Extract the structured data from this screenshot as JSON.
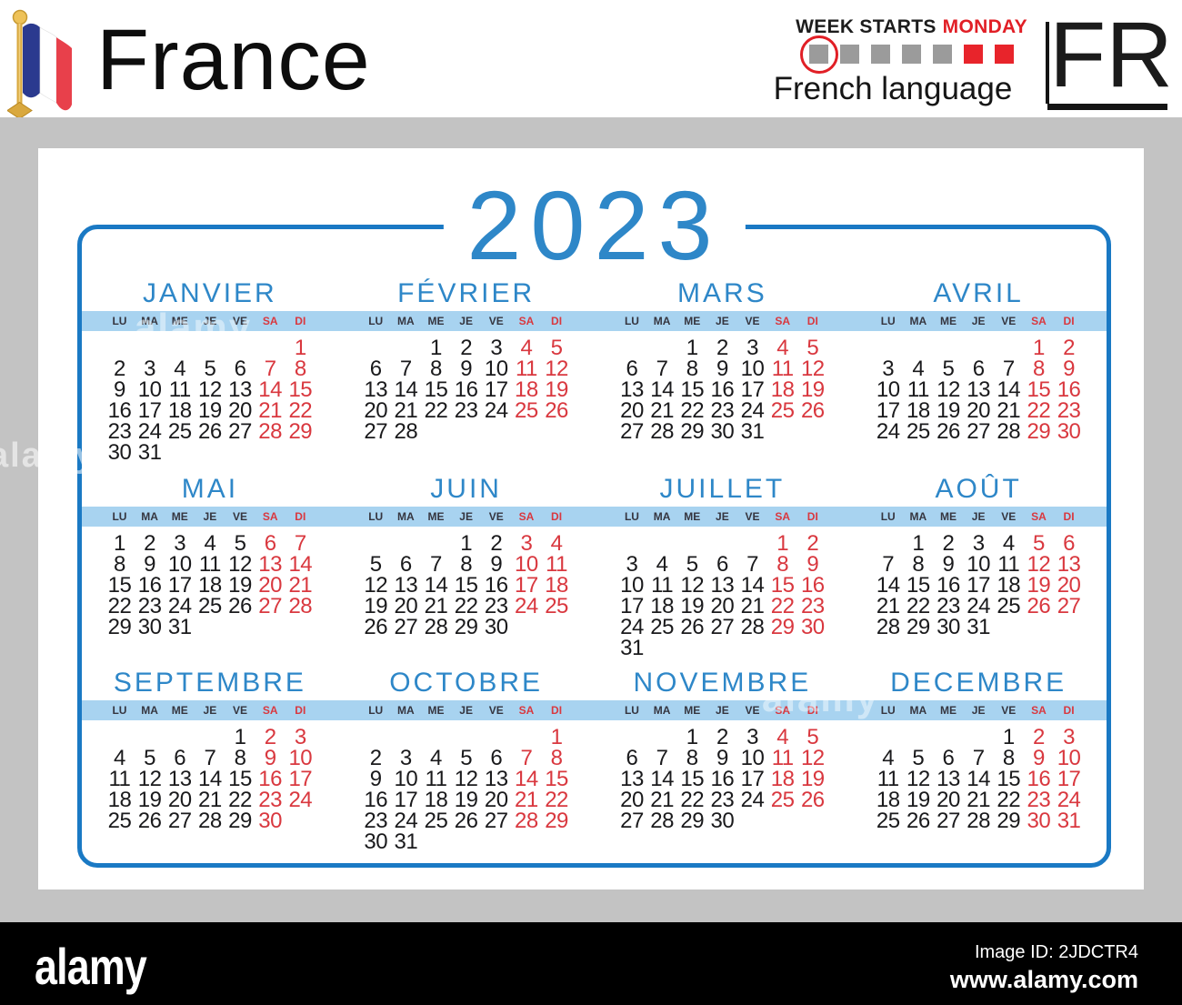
{
  "header": {
    "country": "France",
    "week_starts_prefix": "WEEK STARTS",
    "week_starts_day": "MONDAY",
    "language_label": "French language",
    "country_code": "FR",
    "square_colors": [
      "gray",
      "gray",
      "gray",
      "gray",
      "gray",
      "red",
      "red"
    ],
    "circled_index": 0
  },
  "calendar": {
    "year": "2023",
    "day_headers": [
      "LU",
      "MA",
      "ME",
      "JE",
      "VE",
      "SA",
      "DI"
    ],
    "weekend_columns": [
      5,
      6
    ],
    "months": [
      {
        "name": "JANVIER",
        "weeks": [
          [
            "",
            "",
            "",
            "",
            "",
            "",
            "1"
          ],
          [
            "2",
            "3",
            "4",
            "5",
            "6",
            "7",
            "8"
          ],
          [
            "9",
            "10",
            "11",
            "12",
            "13",
            "14",
            "15"
          ],
          [
            "16",
            "17",
            "18",
            "19",
            "20",
            "21",
            "22"
          ],
          [
            "23",
            "24",
            "25",
            "26",
            "27",
            "28",
            "29"
          ],
          [
            "30",
            "31",
            "",
            "",
            "",
            "",
            ""
          ]
        ]
      },
      {
        "name": "FÉVRIER",
        "weeks": [
          [
            "",
            "",
            "1",
            "2",
            "3",
            "4",
            "5"
          ],
          [
            "6",
            "7",
            "8",
            "9",
            "10",
            "11",
            "12"
          ],
          [
            "13",
            "14",
            "15",
            "16",
            "17",
            "18",
            "19"
          ],
          [
            "20",
            "21",
            "22",
            "23",
            "24",
            "25",
            "26"
          ],
          [
            "27",
            "28",
            "",
            "",
            "",
            "",
            ""
          ]
        ]
      },
      {
        "name": "MARS",
        "weeks": [
          [
            "",
            "",
            "1",
            "2",
            "3",
            "4",
            "5"
          ],
          [
            "6",
            "7",
            "8",
            "9",
            "10",
            "11",
            "12"
          ],
          [
            "13",
            "14",
            "15",
            "16",
            "17",
            "18",
            "19"
          ],
          [
            "20",
            "21",
            "22",
            "23",
            "24",
            "25",
            "26"
          ],
          [
            "27",
            "28",
            "29",
            "30",
            "31",
            "",
            ""
          ]
        ]
      },
      {
        "name": "AVRIL",
        "weeks": [
          [
            "",
            "",
            "",
            "",
            "",
            "1",
            "2"
          ],
          [
            "3",
            "4",
            "5",
            "6",
            "7",
            "8",
            "9"
          ],
          [
            "10",
            "11",
            "12",
            "13",
            "14",
            "15",
            "16"
          ],
          [
            "17",
            "18",
            "19",
            "20",
            "21",
            "22",
            "23"
          ],
          [
            "24",
            "25",
            "26",
            "27",
            "28",
            "29",
            "30"
          ]
        ]
      },
      {
        "name": "MAI",
        "weeks": [
          [
            "1",
            "2",
            "3",
            "4",
            "5",
            "6",
            "7"
          ],
          [
            "8",
            "9",
            "10",
            "11",
            "12",
            "13",
            "14"
          ],
          [
            "15",
            "16",
            "17",
            "18",
            "19",
            "20",
            "21"
          ],
          [
            "22",
            "23",
            "24",
            "25",
            "26",
            "27",
            "28"
          ],
          [
            "29",
            "30",
            "31",
            "",
            "",
            "",
            ""
          ]
        ]
      },
      {
        "name": "JUIN",
        "weeks": [
          [
            "",
            "",
            "",
            "1",
            "2",
            "3",
            "4"
          ],
          [
            "5",
            "6",
            "7",
            "8",
            "9",
            "10",
            "11"
          ],
          [
            "12",
            "13",
            "14",
            "15",
            "16",
            "17",
            "18"
          ],
          [
            "19",
            "20",
            "21",
            "22",
            "23",
            "24",
            "25"
          ],
          [
            "26",
            "27",
            "28",
            "29",
            "30",
            "",
            ""
          ]
        ]
      },
      {
        "name": "JUILLET",
        "weeks": [
          [
            "",
            "",
            "",
            "",
            "",
            "1",
            "2"
          ],
          [
            "3",
            "4",
            "5",
            "6",
            "7",
            "8",
            "9"
          ],
          [
            "10",
            "11",
            "12",
            "13",
            "14",
            "15",
            "16"
          ],
          [
            "17",
            "18",
            "19",
            "20",
            "21",
            "22",
            "23"
          ],
          [
            "24",
            "25",
            "26",
            "27",
            "28",
            "29",
            "30"
          ],
          [
            "31",
            "",
            "",
            "",
            "",
            "",
            ""
          ]
        ]
      },
      {
        "name": "AOÛT",
        "weeks": [
          [
            "",
            "1",
            "2",
            "3",
            "4",
            "5",
            "6"
          ],
          [
            "7",
            "8",
            "9",
            "10",
            "11",
            "12",
            "13"
          ],
          [
            "14",
            "15",
            "16",
            "17",
            "18",
            "19",
            "20"
          ],
          [
            "21",
            "22",
            "23",
            "24",
            "25",
            "26",
            "27"
          ],
          [
            "28",
            "29",
            "30",
            "31",
            "",
            "",
            ""
          ]
        ]
      },
      {
        "name": "SEPTEMBRE",
        "weeks": [
          [
            "",
            "",
            "",
            "",
            "1",
            "2",
            "3"
          ],
          [
            "4",
            "5",
            "6",
            "7",
            "8",
            "9",
            "10"
          ],
          [
            "11",
            "12",
            "13",
            "14",
            "15",
            "16",
            "17"
          ],
          [
            "18",
            "19",
            "20",
            "21",
            "22",
            "23",
            "24"
          ],
          [
            "25",
            "26",
            "27",
            "28",
            "29",
            "30",
            ""
          ]
        ]
      },
      {
        "name": "OCTOBRE",
        "weeks": [
          [
            "",
            "",
            "",
            "",
            "",
            "",
            "1"
          ],
          [
            "2",
            "3",
            "4",
            "5",
            "6",
            "7",
            "8"
          ],
          [
            "9",
            "10",
            "11",
            "12",
            "13",
            "14",
            "15"
          ],
          [
            "16",
            "17",
            "18",
            "19",
            "20",
            "21",
            "22"
          ],
          [
            "23",
            "24",
            "25",
            "26",
            "27",
            "28",
            "29"
          ],
          [
            "30",
            "31",
            "",
            "",
            "",
            "",
            ""
          ]
        ]
      },
      {
        "name": "NOVEMBRE",
        "weeks": [
          [
            "",
            "",
            "1",
            "2",
            "3",
            "4",
            "5"
          ],
          [
            "6",
            "7",
            "8",
            "9",
            "10",
            "11",
            "12"
          ],
          [
            "13",
            "14",
            "15",
            "16",
            "17",
            "18",
            "19"
          ],
          [
            "20",
            "21",
            "22",
            "23",
            "24",
            "25",
            "26"
          ],
          [
            "27",
            "28",
            "29",
            "30",
            "",
            "",
            ""
          ]
        ]
      },
      {
        "name": "DECEMBRE",
        "weeks": [
          [
            "",
            "",
            "",
            "",
            "1",
            "2",
            "3"
          ],
          [
            "4",
            "5",
            "6",
            "7",
            "8",
            "9",
            "10"
          ],
          [
            "11",
            "12",
            "13",
            "14",
            "15",
            "16",
            "17"
          ],
          [
            "18",
            "19",
            "20",
            "21",
            "22",
            "23",
            "24"
          ],
          [
            "25",
            "26",
            "27",
            "28",
            "29",
            "30",
            "31"
          ]
        ]
      }
    ]
  },
  "watermark": {
    "text": "alamy"
  },
  "footer": {
    "brand": "alamy",
    "image_id": "Image ID: 2JDCTR4",
    "website": "www.alamy.com"
  },
  "colors": {
    "accent_blue": "#2e87c8",
    "border_blue": "#1a79c4",
    "band_blue": "#a8d3f0",
    "weekend_red": "#d9383f",
    "header_red": "#e11f26",
    "square_gray": "#9b9b9b",
    "frame_gray": "#c3c3c3"
  }
}
